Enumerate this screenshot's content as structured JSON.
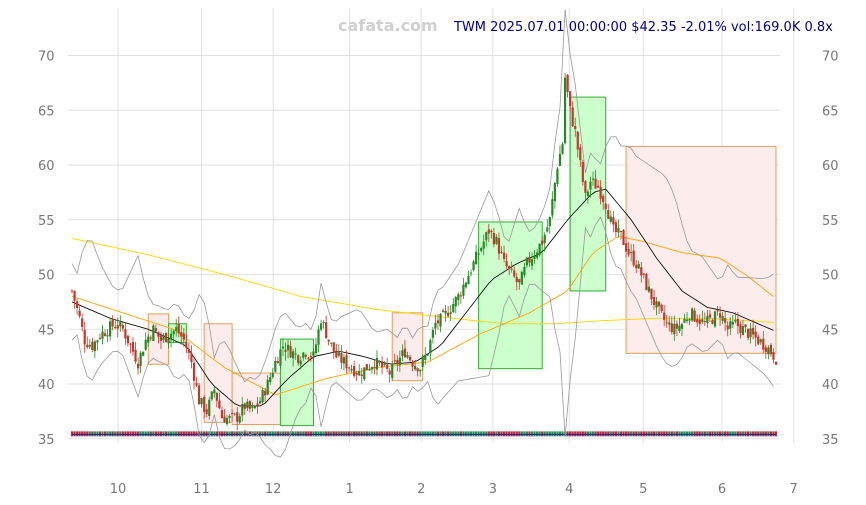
{
  "watermark": "cafata.com",
  "header": "TWM 2025.07.01 00:00:00 $42.35 -2.01% vol:169.0K 0.8x",
  "chart_data": {
    "type": "candlestick",
    "ylim": [
      32,
      73
    ],
    "xlim": [
      0,
      277
    ],
    "grid": true,
    "y_ticks": [
      35,
      40,
      45,
      50,
      55,
      60,
      65,
      70
    ],
    "x_ticks": [
      {
        "label": "10",
        "x": 15
      },
      {
        "label": "11",
        "x": 50
      },
      {
        "label": "12",
        "x": 80
      },
      {
        "label": "1",
        "x": 112
      },
      {
        "label": "2",
        "x": 142
      },
      {
        "label": "3",
        "x": 172
      },
      {
        "label": "4",
        "x": 204
      },
      {
        "label": "5",
        "x": 235
      },
      {
        "label": "6",
        "x": 268
      },
      {
        "label": "7",
        "x": 298
      }
    ],
    "anchors": [
      [
        0,
        48.5
      ],
      [
        3,
        46.0
      ],
      [
        5,
        44.0
      ],
      [
        8,
        43.5
      ],
      [
        11,
        44.5
      ],
      [
        14,
        45.0
      ],
      [
        17,
        45.5
      ],
      [
        20,
        45.0
      ],
      [
        23,
        43.5
      ],
      [
        26,
        42.0
      ],
      [
        29,
        44.0
      ],
      [
        32,
        45.0
      ],
      [
        35,
        44.0
      ],
      [
        38,
        44.5
      ],
      [
        41,
        45.0
      ],
      [
        44,
        44.0
      ],
      [
        47,
        42.0
      ],
      [
        50,
        38.5
      ],
      [
        53,
        37.5
      ],
      [
        56,
        39.5
      ],
      [
        59,
        37.0
      ],
      [
        62,
        36.8
      ],
      [
        65,
        37.0
      ],
      [
        68,
        38.0
      ],
      [
        71,
        37.5
      ],
      [
        74,
        38.5
      ],
      [
        77,
        40.0
      ],
      [
        80,
        42.0
      ],
      [
        83,
        43.5
      ],
      [
        86,
        43.0
      ],
      [
        89,
        42.5
      ],
      [
        92,
        43.0
      ],
      [
        95,
        42.5
      ],
      [
        98,
        46.0
      ],
      [
        101,
        44.0
      ],
      [
        104,
        42.5
      ],
      [
        107,
        42.0
      ],
      [
        110,
        41.5
      ],
      [
        113,
        41.0
      ],
      [
        116,
        41.5
      ],
      [
        119,
        42.0
      ],
      [
        122,
        41.5
      ],
      [
        125,
        41.0
      ],
      [
        128,
        42.0
      ],
      [
        131,
        43.0
      ],
      [
        134,
        42.0
      ],
      [
        137,
        41.5
      ],
      [
        140,
        43.0
      ],
      [
        143,
        45.5
      ],
      [
        146,
        46.0
      ],
      [
        149,
        47.0
      ],
      [
        152,
        48.0
      ],
      [
        155,
        49.5
      ],
      [
        158,
        51.0
      ],
      [
        161,
        52.5
      ],
      [
        164,
        54.0
      ],
      [
        167,
        53.0
      ],
      [
        170,
        51.0
      ],
      [
        173,
        50.0
      ],
      [
        176,
        49.0
      ],
      [
        179,
        51.0
      ],
      [
        182,
        52.0
      ],
      [
        185,
        53.0
      ],
      [
        188,
        55.0
      ],
      [
        191,
        60.0
      ],
      [
        193,
        62.0
      ],
      [
        194,
        68.0
      ],
      [
        196,
        65.0
      ],
      [
        198,
        63.0
      ],
      [
        200,
        60.0
      ],
      [
        202,
        57.0
      ],
      [
        204,
        58.5
      ],
      [
        207,
        58.0
      ],
      [
        210,
        56.5
      ],
      [
        213,
        54.0
      ],
      [
        216,
        53.5
      ],
      [
        219,
        52.0
      ],
      [
        222,
        51.0
      ],
      [
        225,
        49.5
      ],
      [
        228,
        48.0
      ],
      [
        231,
        46.5
      ],
      [
        234,
        45.5
      ],
      [
        237,
        45.0
      ],
      [
        240,
        45.5
      ],
      [
        243,
        46.5
      ],
      [
        246,
        46.0
      ],
      [
        249,
        45.5
      ],
      [
        252,
        46.0
      ],
      [
        255,
        46.5
      ],
      [
        258,
        45.0
      ],
      [
        261,
        45.5
      ],
      [
        264,
        45.0
      ],
      [
        267,
        44.5
      ],
      [
        270,
        44.0
      ],
      [
        273,
        43.5
      ],
      [
        277,
        42.35
      ]
    ],
    "sma_fast_anchors": [
      [
        0,
        47.5
      ],
      [
        15,
        46.0
      ],
      [
        30,
        45.0
      ],
      [
        45,
        43.5
      ],
      [
        55,
        40.0
      ],
      [
        65,
        38.0
      ],
      [
        75,
        38.0
      ],
      [
        85,
        40.5
      ],
      [
        95,
        42.5
      ],
      [
        105,
        43.0
      ],
      [
        115,
        42.5
      ],
      [
        125,
        41.8
      ],
      [
        135,
        42.0
      ],
      [
        145,
        43.5
      ],
      [
        155,
        46.5
      ],
      [
        165,
        49.5
      ],
      [
        175,
        51.0
      ],
      [
        185,
        52.0
      ],
      [
        195,
        55.0
      ],
      [
        205,
        57.5
      ],
      [
        210,
        57.8
      ],
      [
        220,
        55.0
      ],
      [
        230,
        51.5
      ],
      [
        240,
        48.5
      ],
      [
        250,
        47.0
      ],
      [
        260,
        46.5
      ],
      [
        270,
        45.5
      ],
      [
        277,
        44.8
      ]
    ],
    "sma_mid_anchors": [
      [
        0,
        48.0
      ],
      [
        20,
        46.5
      ],
      [
        40,
        45.0
      ],
      [
        60,
        41.5
      ],
      [
        80,
        39.0
      ],
      [
        100,
        40.5
      ],
      [
        120,
        41.5
      ],
      [
        140,
        42.0
      ],
      [
        160,
        44.5
      ],
      [
        180,
        46.5
      ],
      [
        195,
        48.5
      ],
      [
        205,
        52.0
      ],
      [
        215,
        53.5
      ],
      [
        225,
        53.0
      ],
      [
        240,
        52.0
      ],
      [
        255,
        51.5
      ],
      [
        265,
        50.0
      ],
      [
        277,
        47.8
      ]
    ],
    "sma_slow_anchors": [
      [
        0,
        53.3
      ],
      [
        30,
        51.8
      ],
      [
        60,
        50.0
      ],
      [
        90,
        48.0
      ],
      [
        120,
        46.8
      ],
      [
        150,
        46.0
      ],
      [
        170,
        45.5
      ],
      [
        190,
        45.5
      ],
      [
        210,
        45.8
      ],
      [
        230,
        46.0
      ],
      [
        250,
        46.0
      ],
      [
        265,
        45.8
      ],
      [
        277,
        45.6
      ]
    ],
    "boxes": [
      {
        "x0": 30,
        "x1": 38,
        "lo": 41.8,
        "hi": 46.4,
        "dir": "down"
      },
      {
        "x0": 38,
        "x1": 45,
        "lo": 43.8,
        "hi": 45.5,
        "dir": "up"
      },
      {
        "x0": 52,
        "x1": 63,
        "lo": 36.5,
        "hi": 45.5,
        "dir": "down"
      },
      {
        "x0": 63,
        "x1": 82,
        "lo": 36.3,
        "hi": 41.0,
        "dir": "down"
      },
      {
        "x0": 82,
        "x1": 95,
        "lo": 36.2,
        "hi": 44.1,
        "dir": "up"
      },
      {
        "x0": 126,
        "x1": 138,
        "lo": 40.3,
        "hi": 46.5,
        "dir": "down"
      },
      {
        "x0": 160,
        "x1": 185,
        "lo": 41.4,
        "hi": 54.8,
        "dir": "up"
      },
      {
        "x0": 196,
        "x1": 210,
        "lo": 48.5,
        "hi": 66.2,
        "dir": "up"
      },
      {
        "x0": 218,
        "x1": 277,
        "lo": 42.8,
        "hi": 61.7,
        "dir": "down"
      }
    ]
  }
}
